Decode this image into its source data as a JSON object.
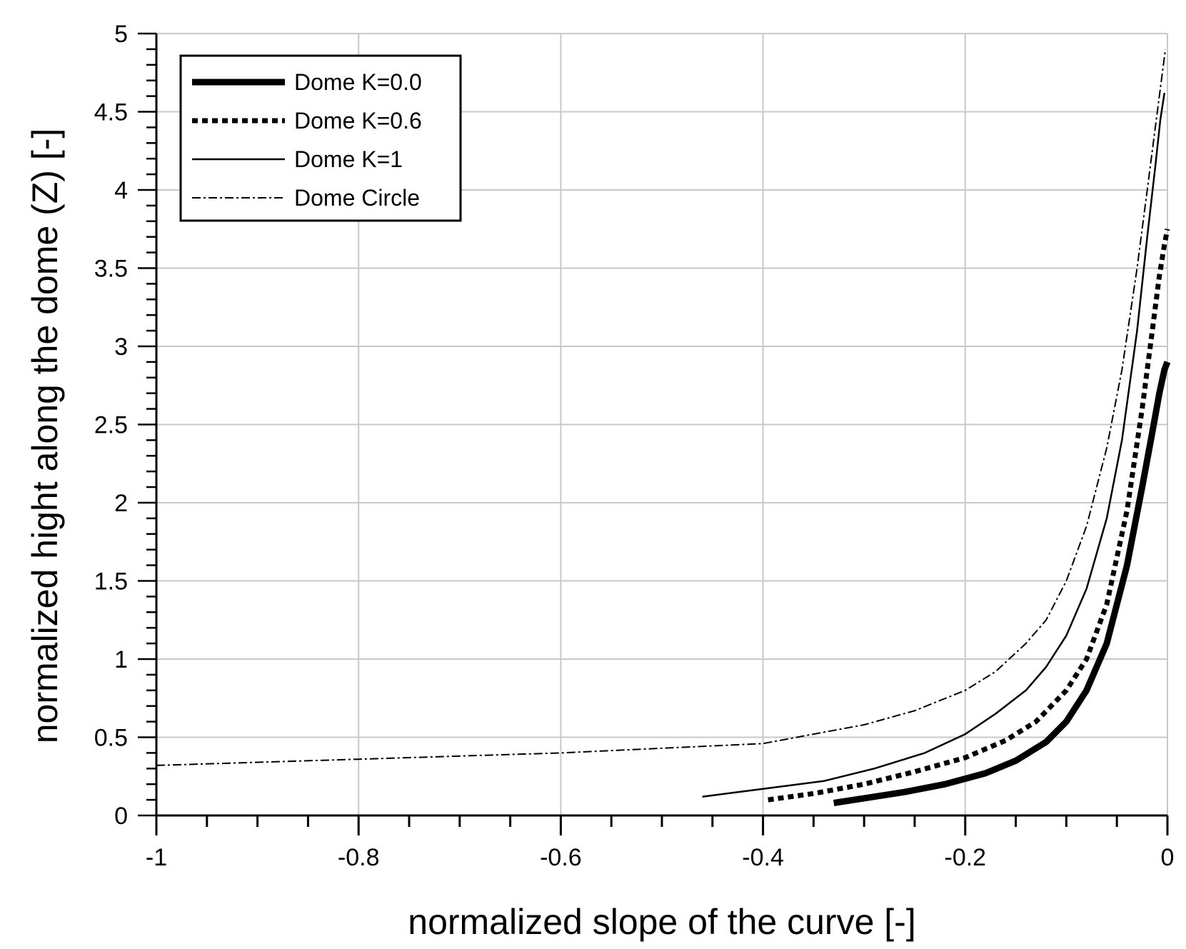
{
  "chart_data": {
    "type": "line",
    "xlabel": "normalized slope of the curve [-]",
    "ylabel": "normalized hight along the dome (Z) [-]",
    "xlim": [
      -1,
      0
    ],
    "ylim": [
      0,
      5
    ],
    "xticks": [
      -1,
      -0.8,
      -0.6,
      -0.4,
      -0.2,
      0
    ],
    "xtick_labels": [
      "-1",
      "-0.8",
      "-0.6",
      "-0.4",
      "-0.2",
      "0"
    ],
    "yticks": [
      0,
      0.5,
      1,
      1.5,
      2,
      2.5,
      3,
      3.5,
      4,
      4.5,
      5
    ],
    "ytick_labels": [
      "0",
      "0.5",
      "1",
      "1.5",
      "2",
      "2.5",
      "3",
      "3.5",
      "4",
      "4.5",
      "5"
    ],
    "grid": true,
    "legend_position": "top-left",
    "series": [
      {
        "name": "Dome K=0.0",
        "style": "thick-solid",
        "x": [
          -0.33,
          -0.3,
          -0.26,
          -0.22,
          -0.18,
          -0.15,
          -0.12,
          -0.1,
          -0.08,
          -0.06,
          -0.04,
          -0.025,
          -0.015,
          -0.008,
          -0.003,
          0
        ],
        "y": [
          0.08,
          0.11,
          0.15,
          0.2,
          0.27,
          0.35,
          0.47,
          0.6,
          0.8,
          1.1,
          1.6,
          2.1,
          2.45,
          2.7,
          2.85,
          2.9
        ]
      },
      {
        "name": "Dome K=0.6",
        "style": "thick-dotted",
        "x": [
          -0.395,
          -0.35,
          -0.3,
          -0.25,
          -0.2,
          -0.16,
          -0.13,
          -0.1,
          -0.08,
          -0.06,
          -0.04,
          -0.025,
          -0.015,
          -0.008,
          -0.003,
          0
        ],
        "y": [
          0.1,
          0.14,
          0.2,
          0.28,
          0.37,
          0.48,
          0.6,
          0.8,
          1.0,
          1.35,
          1.95,
          2.6,
          3.1,
          3.45,
          3.65,
          3.75
        ]
      },
      {
        "name": "Dome K=1",
        "style": "thin-solid",
        "x": [
          -0.46,
          -0.4,
          -0.34,
          -0.29,
          -0.24,
          -0.2,
          -0.17,
          -0.14,
          -0.12,
          -0.1,
          -0.08,
          -0.06,
          -0.045,
          -0.03,
          -0.02,
          -0.012,
          -0.007,
          -0.003
        ],
        "y": [
          0.12,
          0.17,
          0.22,
          0.3,
          0.4,
          0.52,
          0.65,
          0.8,
          0.95,
          1.15,
          1.45,
          1.9,
          2.4,
          3.1,
          3.7,
          4.15,
          4.45,
          4.62
        ]
      },
      {
        "name": "Dome Circle",
        "style": "dash-dot",
        "x": [
          -1,
          -0.8,
          -0.6,
          -0.4,
          -0.35,
          -0.3,
          -0.25,
          -0.2,
          -0.17,
          -0.14,
          -0.12,
          -0.1,
          -0.08,
          -0.06,
          -0.045,
          -0.03,
          -0.02,
          -0.012,
          -0.006,
          -0.002
        ],
        "y": [
          0.32,
          0.36,
          0.4,
          0.46,
          0.52,
          0.58,
          0.67,
          0.8,
          0.92,
          1.1,
          1.25,
          1.5,
          1.85,
          2.35,
          2.85,
          3.5,
          4.0,
          4.4,
          4.7,
          4.9
        ]
      }
    ]
  }
}
